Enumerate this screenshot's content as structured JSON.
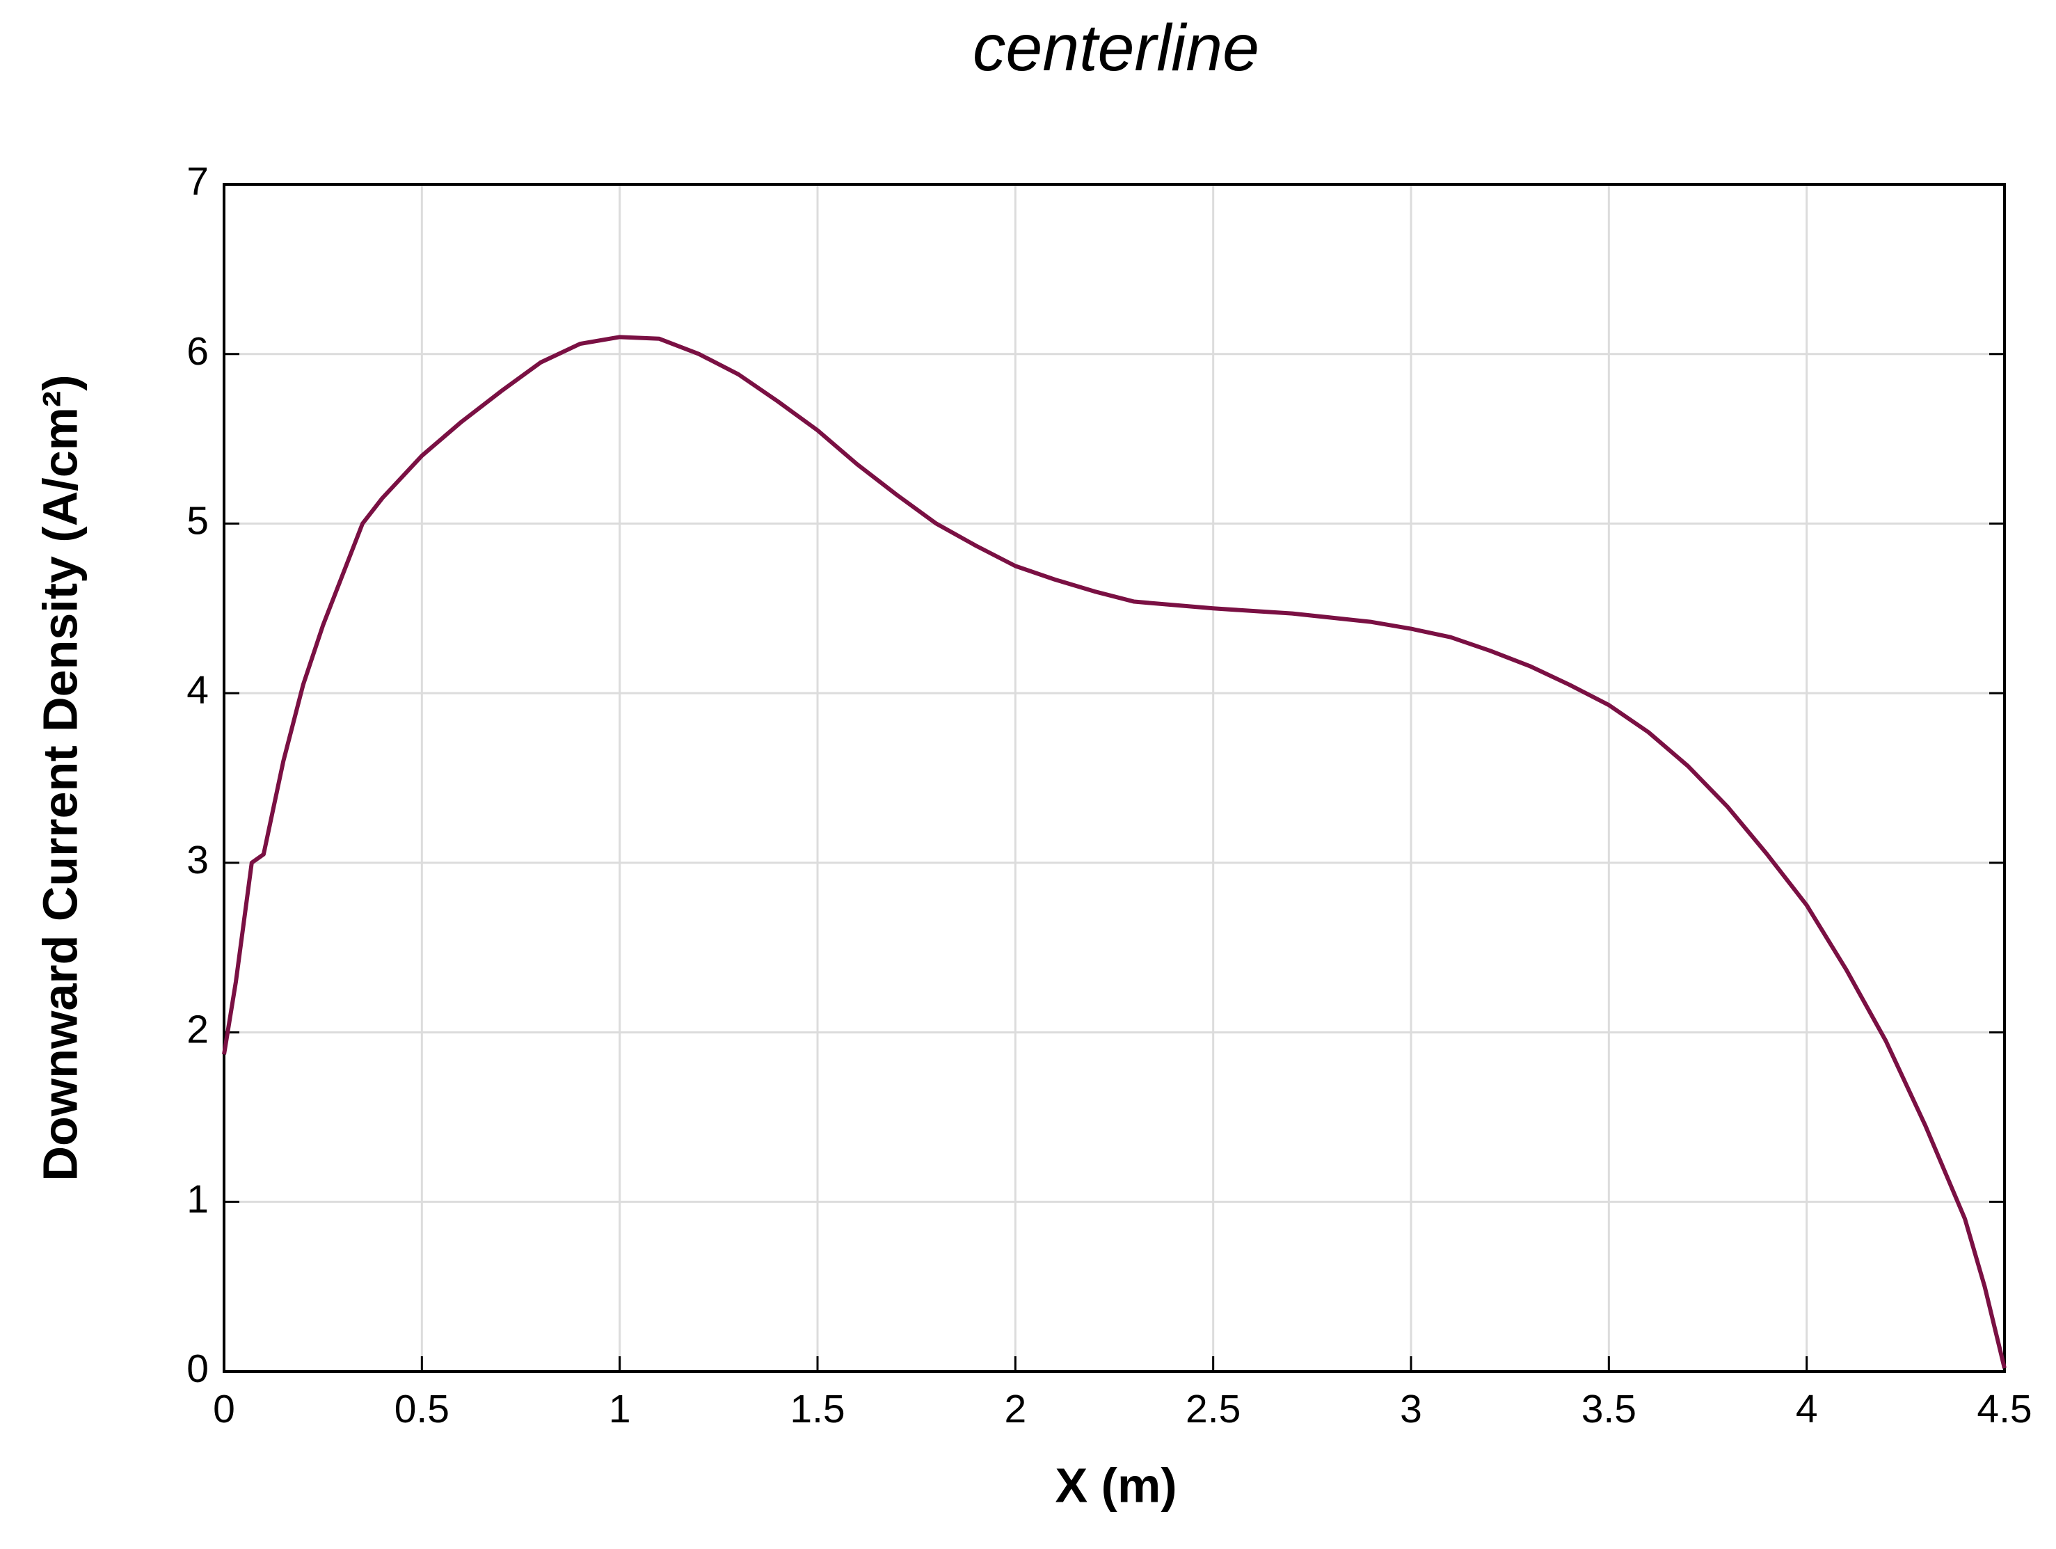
{
  "chart_data": {
    "type": "line",
    "title": "centerline",
    "xlabel": "X (m)",
    "ylabel": "Downward Current Density (A/cm²)",
    "x": [
      0,
      0.03,
      0.07,
      0.1,
      0.15,
      0.2,
      0.25,
      0.3,
      0.35,
      0.4,
      0.5,
      0.6,
      0.7,
      0.8,
      0.9,
      1.0,
      1.1,
      1.2,
      1.3,
      1.4,
      1.5,
      1.6,
      1.7,
      1.8,
      1.9,
      2.0,
      2.1,
      2.2,
      2.3,
      2.5,
      2.7,
      2.9,
      3.0,
      3.1,
      3.2,
      3.3,
      3.4,
      3.5,
      3.6,
      3.7,
      3.8,
      3.9,
      4.0,
      4.1,
      4.2,
      4.3,
      4.4,
      4.45,
      4.5
    ],
    "series": [
      {
        "color": "#7a1043",
        "values": [
          1.87,
          2.3,
          3.0,
          3.05,
          3.6,
          4.05,
          4.4,
          4.7,
          5.0,
          5.15,
          5.4,
          5.6,
          5.78,
          5.95,
          6.06,
          6.1,
          6.09,
          6.0,
          5.88,
          5.72,
          5.55,
          5.35,
          5.17,
          5.0,
          4.87,
          4.75,
          4.67,
          4.6,
          4.54,
          4.5,
          4.47,
          4.42,
          4.38,
          4.33,
          4.25,
          4.16,
          4.05,
          3.93,
          3.77,
          3.57,
          3.33,
          3.05,
          2.75,
          2.37,
          1.95,
          1.45,
          0.9,
          0.5,
          0.02
        ]
      }
    ],
    "xlim": [
      0,
      4.5
    ],
    "xticks": [
      0,
      0.5,
      1,
      1.5,
      2,
      2.5,
      3,
      3.5,
      4,
      4.5
    ],
    "ylim": [
      0,
      7
    ],
    "yticks": [
      0,
      1,
      2,
      3,
      4,
      5,
      6,
      7
    ],
    "grid": true
  }
}
